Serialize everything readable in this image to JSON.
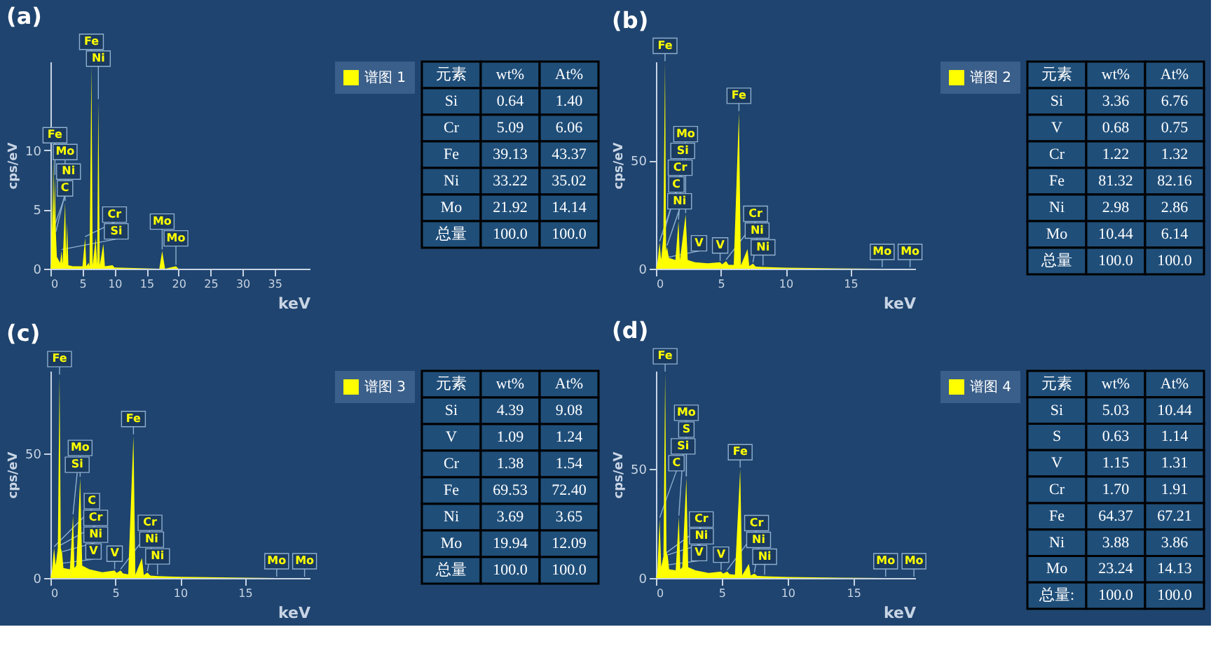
{
  "chart_data": [
    {
      "type": "area",
      "title": "(a)",
      "xlabel": "keV",
      "ylabel": "cps/eV",
      "xlim": [
        0,
        40.5
      ],
      "xticks": [
        0,
        5,
        10,
        15,
        20,
        25,
        30,
        35
      ],
      "ylim": [
        0,
        17.5
      ],
      "yticks": [
        0,
        5,
        10
      ],
      "legend": "top right",
      "x": [
        0,
        0.1,
        0.2,
        0.3,
        0.45,
        0.55,
        0.7,
        0.85,
        1.0,
        1.5,
        1.74,
        1.9,
        2.29,
        2.45,
        2.6,
        2.8,
        3.5,
        5.0,
        5.41,
        5.6,
        5.95,
        6.1,
        6.4,
        6.6,
        7.06,
        7.3,
        7.48,
        7.7,
        8.26,
        8.5,
        9.7,
        10,
        17.0,
        17.45,
        17.9,
        19.6,
        20,
        40.4
      ],
      "series": [
        {
          "name": "谱图 1",
          "color": "#ffff00",
          "values": [
            0,
            0.5,
            6.6,
            3,
            9.5,
            4,
            7.8,
            3,
            1,
            0.5,
            1.5,
            0.4,
            5.6,
            1,
            3.9,
            0.3,
            0.2,
            0.2,
            2.6,
            0.2,
            0.5,
            0.2,
            17.2,
            0.3,
            2.6,
            0.3,
            14.2,
            0.3,
            2.1,
            0.2,
            0.3,
            0.1,
            0,
            1.5,
            0,
            0.2,
            0,
            0
          ]
        }
      ],
      "annotations": [
        {
          "text": "Fe",
          "x": 6.4,
          "y": 17.2
        },
        {
          "text": "Ni",
          "x": 7.48,
          "y": 14.2
        },
        {
          "text": "Mo",
          "x": 2.29,
          "y": 5.6
        },
        {
          "text": "Si",
          "x": 1.74,
          "y": 1.5
        },
        {
          "text": "Fe",
          "x": 0.7,
          "y": 7.8
        },
        {
          "text": "Ni",
          "x": 0.85,
          "y": 3
        },
        {
          "text": "C",
          "x": 0.3,
          "y": 3
        },
        {
          "text": "Cr",
          "x": 5.41,
          "y": 2.6
        },
        {
          "text": "Mo",
          "x": 17.45,
          "y": 1.5
        },
        {
          "text": "Mo",
          "x": 19.6,
          "y": 0.2
        },
        "元素",
        "wt%",
        "At%",
        "Si",
        "0.64",
        "1.40",
        "Cr",
        "5.09",
        "6.06",
        "Fe",
        "39.13",
        "43.37",
        "Ni",
        "33.22",
        "35.02",
        "Mo",
        "21.92",
        "14.14",
        "总量",
        "100.0",
        "100.0"
      ]
    },
    {
      "type": "area",
      "title": "(b)",
      "xlabel": "keV",
      "ylabel": "cps/eV",
      "xlim": [
        0,
        20
      ],
      "xticks": [
        0,
        5,
        10,
        15
      ],
      "ylim": [
        0,
        95.5
      ],
      "yticks": [
        0,
        50
      ],
      "legend": "top right",
      "x": [
        0,
        0.1,
        0.28,
        0.4,
        0.57,
        0.7,
        0.78,
        0.85,
        1.0,
        1.5,
        1.74,
        1.85,
        2.29,
        2.45,
        3,
        4,
        4.95,
        5.1,
        5.41,
        5.6,
        6.0,
        6.4,
        6.55,
        7.06,
        7.2,
        7.48,
        7.7,
        8.26,
        10,
        14,
        17.45,
        19.6,
        20
      ],
      "series": [
        {
          "name": "谱图 2",
          "color": "#ffff00",
          "values": [
            0,
            2,
            12,
            4,
            15,
            95,
            8,
            10,
            5,
            4,
            22,
            4,
            25,
            4,
            3,
            2.5,
            3,
            2,
            3.5,
            1.8,
            1.8,
            72,
            1.5,
            9,
            1.2,
            2.3,
            1,
            0.8,
            0.5,
            0.2,
            0,
            0,
            0
          ]
        }
      ],
      "annotations": [
        {
          "text": "Fe",
          "x": 0.7,
          "y": 95
        },
        {
          "text": "Fe",
          "x": 6.4,
          "y": 72
        },
        {
          "text": "Cr",
          "x": 0.57,
          "y": 15
        },
        {
          "text": "C",
          "x": 0.28,
          "y": 12
        },
        {
          "text": "Ni",
          "x": 0.85,
          "y": 10
        },
        {
          "text": "V",
          "x": 0.4,
          "y": 4
        },
        {
          "text": "Si",
          "x": 1.74,
          "y": 22
        },
        {
          "text": "Mo",
          "x": 2.29,
          "y": 25
        },
        {
          "text": "V",
          "x": 4.95,
          "y": 3
        },
        {
          "text": "Cr",
          "x": 5.41,
          "y": 3.5
        },
        {
          "text": "Ni",
          "x": 7.48,
          "y": 2.3
        },
        {
          "text": "Ni",
          "x": 8.26,
          "y": 0.8
        },
        {
          "text": "Mo",
          "x": 17.45,
          "y": 0
        },
        {
          "text": "Mo",
          "x": 19.6,
          "y": 0
        },
        "元素",
        "wt%",
        "At%",
        "Si",
        "3.36",
        "6.76",
        "V",
        "0.68",
        "0.75",
        "Cr",
        "1.22",
        "1.32",
        "Fe",
        "81.32",
        "82.16",
        "Ni",
        "2.98",
        "2.86",
        "Mo",
        "10.44",
        "6.14",
        "总量",
        "100.0",
        "100.0"
      ]
    },
    {
      "type": "area",
      "title": "(c)",
      "xlabel": "keV",
      "ylabel": "cps/eV",
      "xlim": [
        0,
        20
      ],
      "xticks": [
        0,
        5,
        10,
        15
      ],
      "ylim": [
        0,
        83
      ],
      "yticks": [
        0,
        50
      ],
      "legend": "top right",
      "x": [
        0,
        0.1,
        0.28,
        0.4,
        0.57,
        0.7,
        0.8,
        0.9,
        1.0,
        1.5,
        1.74,
        1.85,
        2.0,
        2.29,
        2.45,
        3,
        4,
        4.95,
        5.1,
        5.41,
        5.6,
        6.0,
        6.4,
        6.55,
        7.06,
        7.2,
        7.48,
        7.7,
        8.26,
        10,
        14,
        17.45,
        19.6,
        20
      ],
      "series": [
        {
          "name": "谱图 3",
          "color": "#ffff00",
          "values": [
            0,
            2,
            12,
            5,
            12,
            81,
            12,
            10,
            4,
            3.5,
            25,
            4,
            5,
            40,
            5,
            3.5,
            2.3,
            3,
            2,
            3,
            1.8,
            1.5,
            57,
            1.3,
            8,
            1.2,
            2.2,
            1,
            0.8,
            0.5,
            0.2,
            0,
            0,
            0
          ]
        }
      ],
      "annotations": [
        {
          "text": "Fe",
          "x": 0.7,
          "y": 81
        },
        {
          "text": "Fe",
          "x": 6.4,
          "y": 57
        },
        {
          "text": "C",
          "x": 0.28,
          "y": 12
        },
        {
          "text": "Cr",
          "x": 0.57,
          "y": 12
        },
        {
          "text": "Ni",
          "x": 0.9,
          "y": 10
        },
        {
          "text": "V",
          "x": 0.4,
          "y": 5
        },
        {
          "text": "Si",
          "x": 1.74,
          "y": 25
        },
        {
          "text": "Mo",
          "x": 2.29,
          "y": 40
        },
        {
          "text": "V",
          "x": 4.95,
          "y": 3
        },
        {
          "text": "Cr",
          "x": 5.41,
          "y": 3
        },
        {
          "text": "Ni",
          "x": 7.48,
          "y": 2.2
        },
        {
          "text": "Ni",
          "x": 8.26,
          "y": 0.8
        },
        {
          "text": "Mo",
          "x": 17.45,
          "y": 0
        },
        {
          "text": "Mo",
          "x": 19.6,
          "y": 0
        },
        "元素",
        "wt%",
        "At%",
        "Si",
        "4.39",
        "9.08",
        "V",
        "1.09",
        "1.24",
        "Cr",
        "1.38",
        "1.54",
        "Fe",
        "69.53",
        "72.40",
        "Ni",
        "3.69",
        "3.65",
        "Mo",
        "19.94",
        "12.09",
        "总量",
        "100.0",
        "100.0"
      ]
    },
    {
      "type": "area",
      "title": "(d)",
      "xlabel": "keV",
      "ylabel": "cps/eV",
      "xlim": [
        0,
        19.7
      ],
      "xticks": [
        0,
        5,
        10,
        15
      ],
      "ylim": [
        0,
        95
      ],
      "yticks": [
        0,
        50
      ],
      "legend": "top right",
      "x": [
        0,
        0.1,
        0.28,
        0.4,
        0.57,
        0.7,
        0.8,
        0.9,
        1.0,
        1.5,
        1.74,
        1.85,
        2.0,
        2.31,
        2.45,
        3,
        4,
        4.95,
        5.1,
        5.41,
        5.6,
        6.0,
        6.4,
        6.55,
        7.06,
        7.2,
        7.48,
        7.7,
        8.26,
        10,
        14,
        17.45,
        19.6,
        19.7
      ],
      "series": [
        {
          "name": "谱图 4",
          "color": "#ffff00",
          "values": [
            0,
            2,
            27,
            5,
            10,
            94,
            12,
            10,
            4,
            3.5,
            28,
            4,
            5,
            46,
            5,
            3.5,
            2.3,
            3,
            2,
            3,
            1.8,
            1.5,
            50,
            1.3,
            6.5,
            1.2,
            2,
            1,
            0.8,
            0.5,
            0.2,
            0,
            0,
            0
          ]
        }
      ],
      "annotations": [
        {
          "text": "Fe",
          "x": 0.7,
          "y": 94
        },
        {
          "text": "Fe",
          "x": 6.4,
          "y": 50
        },
        {
          "text": "Mo",
          "x": 2.31,
          "y": 46
        },
        {
          "text": "S",
          "x": 2.31,
          "y": 46
        },
        {
          "text": "C",
          "x": 0.28,
          "y": 27
        },
        {
          "text": "Cr",
          "x": 0.57,
          "y": 10
        },
        {
          "text": "Ni",
          "x": 0.9,
          "y": 10
        },
        {
          "text": "V",
          "x": 0.4,
          "y": 5
        },
        {
          "text": "Si",
          "x": 1.74,
          "y": 28
        },
        {
          "text": "V",
          "x": 4.95,
          "y": 3
        },
        {
          "text": "Cr",
          "x": 5.41,
          "y": 3
        },
        {
          "text": "Ni",
          "x": 7.48,
          "y": 2
        },
        {
          "text": "Ni",
          "x": 8.26,
          "y": 0.8
        },
        {
          "text": "Mo",
          "x": 17.45,
          "y": 0
        },
        {
          "text": "Mo",
          "x": 19.6,
          "y": 0
        },
        "元素",
        "wt%",
        "At%",
        "Si",
        "5.03",
        "10.44",
        "S",
        "0.63",
        "1.14",
        "V",
        "1.15",
        "1.31",
        "Cr",
        "1.70",
        "1.91",
        "Fe",
        "64.37",
        "67.21",
        "Ni",
        "3.88",
        "3.86",
        "Mo",
        "23.24",
        "14.13",
        "总量:",
        "100.0",
        "100.0"
      ]
    }
  ]
}
